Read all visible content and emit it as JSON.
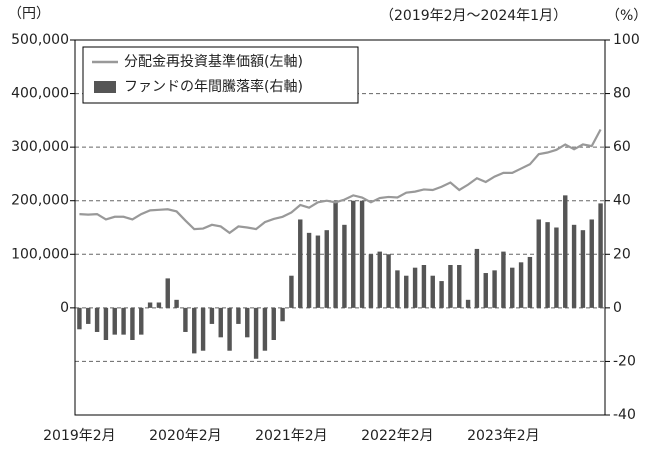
{
  "chart_data": {
    "type": "bar-line",
    "y_unit": "（円）",
    "period": "（2019年2月～2024年1月）",
    "y2_unit": "（%）",
    "categories": [
      "2019年2月",
      null,
      null,
      null,
      null,
      null,
      null,
      null,
      null,
      null,
      null,
      null,
      "2020年2月",
      null,
      null,
      null,
      null,
      null,
      null,
      null,
      null,
      null,
      null,
      null,
      "2021年2月",
      null,
      null,
      null,
      null,
      null,
      null,
      null,
      null,
      null,
      null,
      null,
      "2022年2月",
      null,
      null,
      null,
      null,
      null,
      null,
      null,
      null,
      null,
      null,
      null,
      "2023年2月",
      null,
      null,
      null,
      null,
      null,
      null,
      null,
      null,
      null,
      null,
      null
    ],
    "series": [
      {
        "name": "分配金再投資基準価額(左軸)",
        "type": "line",
        "color": "#999999",
        "values": [
          175000,
          174000,
          175000,
          165000,
          170000,
          170000,
          165000,
          175000,
          182000,
          183000,
          184000,
          180000,
          163000,
          147000,
          148000,
          155000,
          152000,
          140000,
          152000,
          150000,
          147000,
          160000,
          166000,
          170000,
          178000,
          192000,
          187000,
          197000,
          200000,
          197000,
          202000,
          210000,
          206000,
          197000,
          205000,
          207000,
          206000,
          215000,
          217000,
          221000,
          220000,
          226000,
          234000,
          220000,
          230000,
          242000,
          235000,
          245000,
          252000,
          252000,
          260000,
          268000,
          287000,
          290000,
          295000,
          305000,
          296000,
          305000,
          302000,
          333000
        ]
      },
      {
        "name": "ファンドの年間騰落率(右軸)",
        "type": "bar",
        "axis": "y2",
        "color": "#555555",
        "values": [
          -8,
          -6,
          -9,
          -12,
          -10,
          -10,
          -12,
          -10,
          2,
          2,
          11,
          3,
          -9,
          -17,
          -16,
          -6,
          -11,
          -16,
          -6,
          -11,
          -19,
          -16,
          -12,
          -5,
          12,
          33,
          28,
          27,
          29,
          40,
          31,
          40,
          40,
          20,
          21,
          20,
          14,
          12,
          15,
          16,
          12,
          10,
          16,
          16,
          3,
          22,
          13,
          14,
          21,
          15,
          17,
          19,
          33,
          32,
          30,
          42,
          31,
          29,
          33,
          39
        ]
      }
    ],
    "ylim": [
      -200000,
      500000
    ],
    "yticks": [
      {
        "value": 0,
        "label": "0"
      },
      {
        "value": 100000,
        "label": "100,000"
      },
      {
        "value": 200000,
        "label": "200,000"
      },
      {
        "value": 300000,
        "label": "300,000"
      },
      {
        "value": 400000,
        "label": "400,000"
      },
      {
        "value": 500000,
        "label": "500,000"
      }
    ],
    "y2lim": [
      -40,
      100
    ],
    "y2ticks": [
      -40,
      -20,
      0,
      20,
      40,
      60,
      80,
      100
    ],
    "grid": true
  }
}
